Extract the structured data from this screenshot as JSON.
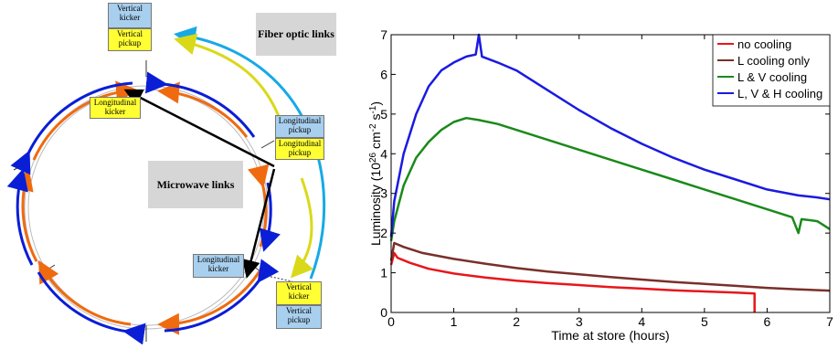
{
  "diagram": {
    "labels": {
      "vertical_kicker_top": "Vertical kicker",
      "vertical_pickup_top": "Vertical pickup",
      "fiber_optic_links": "Fiber optic links",
      "longitudinal_kicker_left": "Longitudinal kicker",
      "longitudinal_pickup_blue": "Longitudinal pickup",
      "longitudinal_pickup_yellow": "Longitudinal pickup",
      "microwave_links": "Microwave links",
      "longitudinal_kicker_bottom": "Longitudinal kicker",
      "vertical_kicker_bottom": "Vertical kicker",
      "vertical_pickup_bottom": "Vertical pickup"
    },
    "colors": {
      "blue_beam": "#0a1ed6",
      "orange_beam": "#f06a10",
      "fiber_cyan": "#17a9e6",
      "fiber_yellow": "#d9d91a",
      "microwave": "#000000"
    }
  },
  "chart_data": {
    "type": "line",
    "title": "",
    "xlabel": "Time at store (hours)",
    "ylabel_main": "Luminosity (10",
    "ylabel_exp1": "26",
    "ylabel_unit": " cm",
    "ylabel_exp2": "-2",
    "ylabel_s": " s",
    "ylabel_exp3": "-1",
    "ylabel_close": ")",
    "xlim": [
      0,
      7
    ],
    "ylim": [
      0,
      7
    ],
    "xticks": [
      "0",
      "1",
      "2",
      "3",
      "4",
      "5",
      "6",
      "7"
    ],
    "yticks": [
      "0",
      "1",
      "2",
      "3",
      "4",
      "5",
      "6",
      "7"
    ],
    "legend_position": "top-right",
    "series": [
      {
        "name": "no cooling",
        "color": "#e8161b",
        "x": [
          0,
          0.05,
          0.1,
          0.3,
          0.6,
          1,
          1.5,
          2,
          2.5,
          3,
          3.5,
          4,
          4.5,
          5,
          5.5,
          5.8,
          5.8
        ],
        "y": [
          1.2,
          1.5,
          1.38,
          1.25,
          1.1,
          0.98,
          0.88,
          0.8,
          0.74,
          0.69,
          0.64,
          0.6,
          0.56,
          0.53,
          0.5,
          0.48,
          0
        ]
      },
      {
        "name": "L cooling only",
        "color": "#7a2f2a",
        "x": [
          0,
          0.05,
          0.2,
          0.5,
          1,
          1.5,
          2,
          2.5,
          3,
          3.5,
          4,
          4.5,
          5,
          5.5,
          6,
          6.5,
          7
        ],
        "y": [
          1.3,
          1.75,
          1.65,
          1.5,
          1.35,
          1.23,
          1.12,
          1.03,
          0.96,
          0.89,
          0.83,
          0.77,
          0.72,
          0.67,
          0.62,
          0.58,
          0.55
        ]
      },
      {
        "name": "L & V cooling",
        "color": "#1a8a1a",
        "x": [
          0,
          0.05,
          0.2,
          0.4,
          0.6,
          0.8,
          1,
          1.2,
          1.4,
          1.7,
          2,
          2.5,
          3,
          3.5,
          4,
          4.5,
          5,
          5.5,
          6,
          6.4,
          6.5,
          6.55,
          6.8,
          7
        ],
        "y": [
          1.8,
          2.3,
          3.2,
          3.9,
          4.3,
          4.6,
          4.8,
          4.9,
          4.85,
          4.75,
          4.6,
          4.35,
          4.1,
          3.85,
          3.6,
          3.35,
          3.1,
          2.85,
          2.6,
          2.4,
          2.0,
          2.35,
          2.3,
          2.1
        ]
      },
      {
        "name": "L, V & H cooling",
        "color": "#1a1ae0",
        "x": [
          0,
          0.05,
          0.2,
          0.4,
          0.6,
          0.8,
          1,
          1.2,
          1.35,
          1.4,
          1.45,
          1.7,
          2,
          2.5,
          3,
          3.5,
          4,
          4.5,
          5,
          5.5,
          6,
          6.5,
          6.8,
          7
        ],
        "y": [
          1.9,
          2.8,
          4.0,
          5.0,
          5.7,
          6.1,
          6.3,
          6.45,
          6.5,
          7.0,
          6.45,
          6.3,
          6.1,
          5.6,
          5.1,
          4.65,
          4.25,
          3.9,
          3.6,
          3.35,
          3.1,
          2.95,
          2.9,
          2.85
        ]
      }
    ]
  }
}
